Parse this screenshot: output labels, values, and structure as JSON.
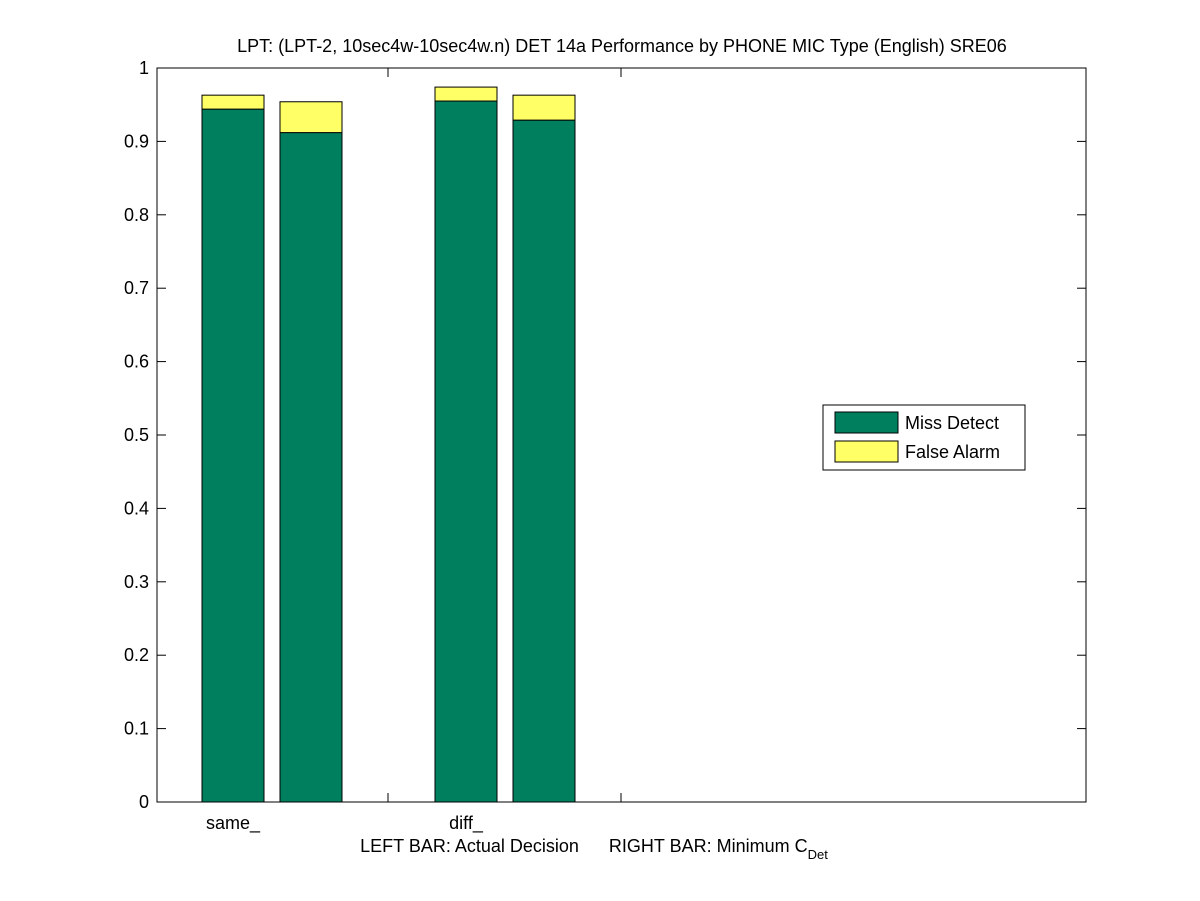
{
  "chart_data": {
    "type": "bar",
    "stacked": true,
    "title": "LPT: (LPT-2, 10sec4w-10sec4w.n) DET 14a Performance by PHONE MIC Type (English) SRE06",
    "xlabel_left": "LEFT BAR: Actual Decision",
    "xlabel_right_prefix": "RIGHT BAR: Minimum C",
    "xlabel_right_subscript": "Det",
    "ylim": [
      0,
      1
    ],
    "yticks": [
      "0",
      "0.1",
      "0.2",
      "0.3",
      "0.4",
      "0.5",
      "0.6",
      "0.7",
      "0.8",
      "0.9",
      "1"
    ],
    "categories": [
      "same_",
      "diff_"
    ],
    "bars_per_category": [
      "Actual Decision",
      "Minimum CDet"
    ],
    "series": [
      {
        "name": "Miss Detect",
        "color": "#007F5F",
        "values": [
          [
            0.944,
            0.912
          ],
          [
            0.955,
            0.929
          ]
        ]
      },
      {
        "name": "False Alarm",
        "color": "#FFFF66",
        "values": [
          [
            0.019,
            0.042
          ],
          [
            0.019,
            0.034
          ]
        ]
      }
    ],
    "legend_position": "right"
  }
}
